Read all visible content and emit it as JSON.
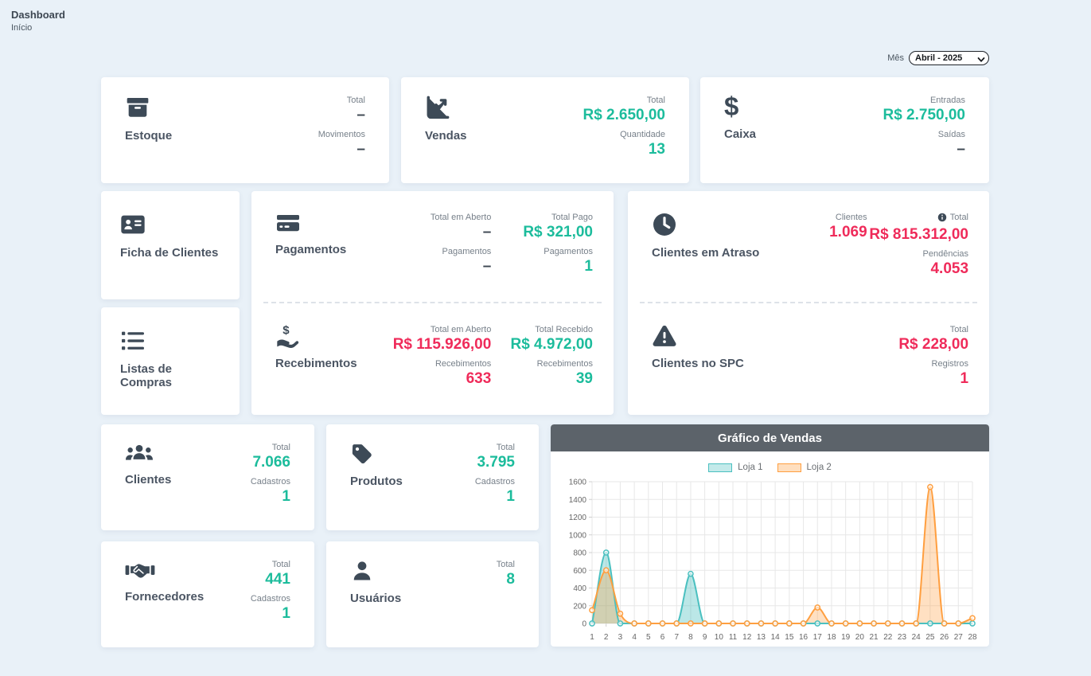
{
  "page": {
    "title": "Dashboard",
    "breadcrumb": "Início"
  },
  "month_filter": {
    "label": "Mês",
    "selected": "Abril - 2025"
  },
  "palette": {
    "bg": "#e9f1f8",
    "card_bg": "#ffffff",
    "text_dark": "#3d4752",
    "text_label": "#77808a",
    "title_color": "#4b5563",
    "icon_color": "#3d4a57",
    "accent_teal": "#1cbc9c",
    "accent_red": "#ef2b5a",
    "chart_header_bg": "#5c636a"
  },
  "cards": {
    "estoque": {
      "title": "Estoque",
      "icon": "box-icon",
      "stats": [
        {
          "label": "Total",
          "value": "–"
        },
        {
          "label": "Movimentos",
          "value": "–"
        }
      ]
    },
    "vendas": {
      "title": "Vendas",
      "icon": "chart-line-icon",
      "stats": [
        {
          "label": "Total",
          "value": "R$ 2.650,00"
        },
        {
          "label": "Quantidade",
          "value": "13"
        }
      ]
    },
    "caixa": {
      "title": "Caixa",
      "icon": "dollar-icon",
      "stats": [
        {
          "label": "Entradas",
          "value": "R$ 2.750,00"
        },
        {
          "label": "Saídas",
          "value": "–"
        }
      ]
    },
    "ficha_clientes": {
      "title": "Ficha de Clientes",
      "icon": "address-card-icon"
    },
    "listas_compras": {
      "title": "Listas de Compras",
      "icon": "list-icon"
    },
    "pagamentos": {
      "title": "Pagamentos",
      "icon": "credit-card-icon",
      "col1": [
        {
          "label": "Total em Aberto",
          "value": "–"
        },
        {
          "label": "Pagamentos",
          "value": "–"
        }
      ],
      "col2": [
        {
          "label": "Total Pago",
          "value": "R$ 321,00"
        },
        {
          "label": "Pagamentos",
          "value": "1"
        }
      ]
    },
    "recebimentos": {
      "title": "Recebimentos",
      "icon": "hand-holding-dollar-icon",
      "col1": [
        {
          "label": "Total em Aberto",
          "value": "R$ 115.926,00"
        },
        {
          "label": "Recebimentos",
          "value": "633"
        }
      ],
      "col2": [
        {
          "label": "Total Recebido",
          "value": "R$ 4.972,00"
        },
        {
          "label": "Recebimentos",
          "value": "39"
        }
      ]
    },
    "clientes_atraso": {
      "title": "Clientes em Atraso",
      "icon": "clock-icon",
      "col1": [
        {
          "label": "Clientes",
          "value": "1.069"
        }
      ],
      "col2": [
        {
          "label": "Total",
          "value": "R$ 815.312,00",
          "has_info_icon": true
        },
        {
          "label": "Pendências",
          "value": "4.053"
        }
      ]
    },
    "clientes_spc": {
      "title": "Clientes no SPC",
      "icon": "warning-triangle-icon",
      "col2": [
        {
          "label": "Total",
          "value": "R$ 228,00"
        },
        {
          "label": "Registros",
          "value": "1"
        }
      ]
    },
    "clientes": {
      "title": "Clientes",
      "icon": "users-icon",
      "stats": [
        {
          "label": "Total",
          "value": "7.066"
        },
        {
          "label": "Cadastros",
          "value": "1"
        }
      ]
    },
    "produtos": {
      "title": "Produtos",
      "icon": "tag-icon",
      "stats": [
        {
          "label": "Total",
          "value": "3.795"
        },
        {
          "label": "Cadastros",
          "value": "1"
        }
      ]
    },
    "fornecedores": {
      "title": "Fornecedores",
      "icon": "handshake-icon",
      "stats": [
        {
          "label": "Total",
          "value": "441"
        },
        {
          "label": "Cadastros",
          "value": "1"
        }
      ]
    },
    "usuarios": {
      "title": "Usuários",
      "icon": "user-icon",
      "stats": [
        {
          "label": "Total",
          "value": "8"
        }
      ]
    }
  },
  "chart_data": {
    "type": "area",
    "title": "Gráfico de Vendas",
    "x_labels": [
      "1",
      "2",
      "3",
      "4",
      "5",
      "6",
      "7",
      "8",
      "9",
      "10",
      "11",
      "12",
      "13",
      "14",
      "15",
      "16",
      "17",
      "18",
      "19",
      "20",
      "21",
      "22",
      "23",
      "24",
      "25",
      "26",
      "27",
      "28"
    ],
    "ylim": [
      0,
      1600
    ],
    "y_tick_step": 200,
    "grid": true,
    "legend_position": "top",
    "series": [
      {
        "name": "Loja 1",
        "color": "#4bc0c0",
        "values": [
          0,
          800,
          0,
          0,
          0,
          0,
          0,
          560,
          0,
          0,
          0,
          0,
          0,
          0,
          0,
          0,
          0,
          0,
          0,
          0,
          0,
          0,
          0,
          0,
          0,
          0,
          0,
          0
        ]
      },
      {
        "name": "Loja 2",
        "color": "#ff9f40",
        "values": [
          150,
          600,
          110,
          0,
          0,
          0,
          0,
          0,
          0,
          0,
          0,
          0,
          0,
          0,
          0,
          0,
          180,
          0,
          0,
          0,
          0,
          0,
          0,
          0,
          1540,
          0,
          0,
          60
        ]
      }
    ]
  }
}
